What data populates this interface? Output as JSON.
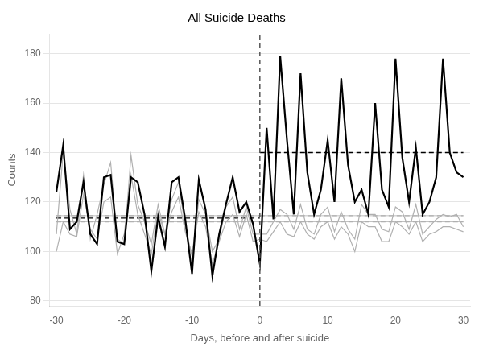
{
  "chart_data": {
    "type": "line",
    "title": "All Suicide Deaths",
    "xlabel": "Days, before and after suicide",
    "ylabel": "Counts",
    "xlim": [
      -31,
      31
    ],
    "ylim": [
      78,
      188
    ],
    "xticks": [
      -30,
      -20,
      -10,
      0,
      10,
      20,
      30
    ],
    "yticks": [
      80,
      100,
      120,
      140,
      160,
      180
    ],
    "grid": "y",
    "x": [
      -30,
      -29,
      -28,
      -27,
      -26,
      -25,
      -24,
      -23,
      -22,
      -21,
      -20,
      -19,
      -18,
      -17,
      -16,
      -15,
      -14,
      -13,
      -12,
      -11,
      -10,
      -9,
      -8,
      -7,
      -6,
      -5,
      -4,
      -3,
      -2,
      -1,
      0,
      1,
      2,
      3,
      4,
      5,
      6,
      7,
      8,
      9,
      10,
      11,
      12,
      13,
      14,
      15,
      16,
      17,
      18,
      19,
      20,
      21,
      22,
      23,
      24,
      25,
      26,
      27,
      28,
      29,
      30
    ],
    "series": [
      {
        "color": "#b0b0b0",
        "line_style": "solid",
        "values": [
          107,
          140,
          117,
          107,
          131,
          105,
          115,
          127,
          136,
          105,
          103,
          139,
          119,
          112,
          103,
          119,
          107,
          121,
          128,
          110,
          98,
          121,
          115,
          100,
          105,
          118,
          122,
          109,
          118,
          107,
          107,
          107,
          112,
          117,
          115,
          109,
          119,
          109,
          107,
          115,
          118,
          108,
          116,
          109,
          105,
          119,
          115,
          115,
          109,
          108,
          118,
          116,
          109,
          119,
          107,
          110,
          113,
          115,
          114,
          115,
          110
        ]
      },
      {
        "color": "#b0b0b0",
        "line_style": "solid",
        "values": [
          100,
          112,
          107,
          106,
          123,
          109,
          105,
          120,
          122,
          99,
          107,
          131,
          115,
          107,
          99,
          116,
          107,
          116,
          122,
          108,
          99,
          116,
          110,
          95,
          104,
          112,
          115,
          106,
          115,
          104,
          105,
          104,
          108,
          112,
          107,
          106,
          112,
          107,
          105,
          110,
          112,
          105,
          110,
          107,
          100,
          112,
          110,
          110,
          104,
          104,
          112,
          110,
          107,
          112,
          104,
          107,
          108,
          110,
          110,
          109,
          108
        ]
      },
      {
        "color": "#000000",
        "line_style": "solid",
        "values": [
          124,
          143,
          109,
          112,
          128,
          107,
          103,
          130,
          131,
          104,
          103,
          130,
          128,
          115,
          92,
          114,
          102,
          128,
          130,
          113,
          91,
          129,
          117,
          90,
          107,
          119,
          130,
          116,
          120,
          111,
          95,
          150,
          113,
          179,
          145,
          115,
          172,
          132,
          115,
          125,
          145,
          120,
          170,
          135,
          120,
          125,
          115,
          160,
          125,
          118,
          178,
          138,
          120,
          142,
          115,
          120,
          130,
          178,
          140,
          132,
          130
        ]
      }
    ],
    "mean_lines": [
      {
        "value": 113.5,
        "from": -30,
        "to": 0,
        "color": "#000000",
        "line_style": "dashed"
      },
      {
        "value": 114.5,
        "from": -30,
        "to": 0,
        "color": "#b0b0b0",
        "line_style": "dashed"
      },
      {
        "value": 112.0,
        "from": -30,
        "to": 0,
        "color": "#b0b0b0",
        "line_style": "dashed"
      },
      {
        "value": 140.0,
        "from": 0,
        "to": 30,
        "color": "#000000",
        "line_style": "dashed"
      },
      {
        "value": 114.5,
        "from": 0,
        "to": 30,
        "color": "#b0b0b0",
        "line_style": "dashed"
      },
      {
        "value": 112.0,
        "from": 0,
        "to": 30,
        "color": "#b0b0b0",
        "line_style": "dashed"
      },
      {
        "value": 114.5,
        "from": -30,
        "to": 30,
        "color": "#b0b0b0",
        "line_style": "solid"
      },
      {
        "value": 112.0,
        "from": -30,
        "to": 30,
        "color": "#b0b0b0",
        "line_style": "solid"
      }
    ],
    "vline": {
      "value": 0,
      "color": "#555555",
      "line_style": "dashed"
    }
  }
}
